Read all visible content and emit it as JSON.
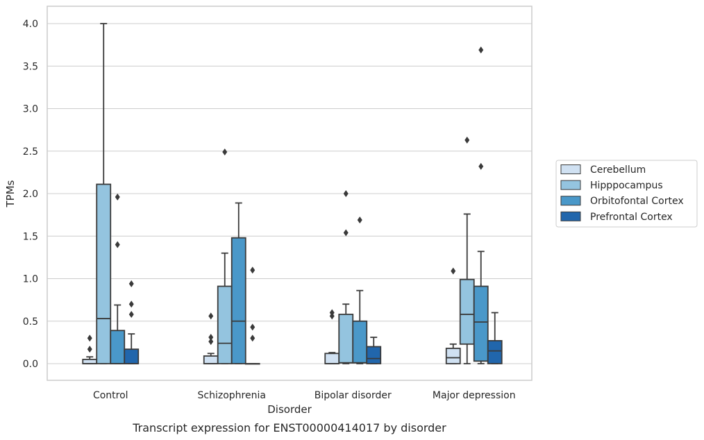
{
  "chart_data": {
    "type": "box",
    "caption": "Transcript expression for ENST00000414017 by disorder",
    "xlabel": "Disorder",
    "ylabel": "TPMs",
    "ylim": [
      -0.19,
      4.2
    ],
    "yticks": [
      0.0,
      0.5,
      1.0,
      1.5,
      2.0,
      2.5,
      3.0,
      3.5,
      4.0
    ],
    "ytick_labels": [
      "0.0",
      "0.5",
      "1.0",
      "1.5",
      "2.0",
      "2.5",
      "3.0",
      "3.5",
      "4.0"
    ],
    "grid": "horizontal",
    "legend_position": "right",
    "categories": [
      "Control",
      "Schizophrenia",
      "Bipolar disorder",
      "Major depression"
    ],
    "series": [
      {
        "name": "Cerebellum",
        "color": "#d0e1f2",
        "boxes": [
          {
            "q1": 0.0,
            "median": 0.0,
            "q3": 0.05,
            "whislo": 0.0,
            "whishi": 0.08,
            "fliers": [
              0.17,
              0.3
            ]
          },
          {
            "q1": 0.0,
            "median": 0.0,
            "q3": 0.09,
            "whislo": 0.0,
            "whishi": 0.12,
            "fliers": [
              0.26,
              0.31,
              0.56
            ]
          },
          {
            "q1": 0.0,
            "median": 0.0,
            "q3": 0.12,
            "whislo": 0.0,
            "whishi": 0.13,
            "fliers": [
              0.56,
              0.6
            ]
          },
          {
            "q1": 0.0,
            "median": 0.07,
            "q3": 0.18,
            "whislo": 0.0,
            "whishi": 0.23,
            "fliers": [
              1.09
            ]
          }
        ]
      },
      {
        "name": "Hipppocampus",
        "color": "#94c4df",
        "boxes": [
          {
            "q1": 0.0,
            "median": 0.53,
            "q3": 2.11,
            "whislo": 0.0,
            "whishi": 4.0,
            "fliers": []
          },
          {
            "q1": 0.0,
            "median": 0.24,
            "q3": 0.91,
            "whislo": 0.0,
            "whishi": 1.3,
            "fliers": [
              2.49
            ]
          },
          {
            "q1": 0.01,
            "median": 0.01,
            "q3": 0.58,
            "whislo": 0.0,
            "whishi": 0.7,
            "fliers": [
              1.54,
              2.0
            ]
          },
          {
            "q1": 0.23,
            "median": 0.58,
            "q3": 0.99,
            "whislo": 0.0,
            "whishi": 1.76,
            "fliers": [
              2.63
            ]
          }
        ]
      },
      {
        "name": "Orbitofontal Cortex",
        "color": "#4a98c9",
        "boxes": [
          {
            "q1": 0.0,
            "median": 0.0,
            "q3": 0.39,
            "whislo": 0.0,
            "whishi": 0.69,
            "fliers": [
              1.4,
              1.96
            ]
          },
          {
            "q1": 0.0,
            "median": 0.5,
            "q3": 1.48,
            "whislo": 0.0,
            "whishi": 1.89,
            "fliers": []
          },
          {
            "q1": 0.01,
            "median": 0.01,
            "q3": 0.5,
            "whislo": 0.0,
            "whishi": 0.86,
            "fliers": [
              1.69
            ]
          },
          {
            "q1": 0.03,
            "median": 0.49,
            "q3": 0.91,
            "whislo": 0.0,
            "whishi": 1.32,
            "fliers": [
              2.32,
              3.69
            ]
          }
        ]
      },
      {
        "name": "Prefrontal Cortex",
        "color": "#2166ac",
        "boxes": [
          {
            "q1": 0.0,
            "median": 0.0,
            "q3": 0.17,
            "whislo": 0.0,
            "whishi": 0.35,
            "fliers": [
              0.58,
              0.7,
              0.94
            ]
          },
          {
            "q1": 0.0,
            "median": 0.0,
            "q3": 0.0,
            "whislo": 0.0,
            "whishi": 0.0,
            "fliers": [
              0.3,
              0.43,
              1.1
            ]
          },
          {
            "q1": 0.0,
            "median": 0.06,
            "q3": 0.2,
            "whislo": 0.0,
            "whishi": 0.31,
            "fliers": []
          },
          {
            "q1": 0.0,
            "median": 0.15,
            "q3": 0.27,
            "whislo": 0.0,
            "whishi": 0.6,
            "fliers": []
          }
        ]
      }
    ]
  }
}
